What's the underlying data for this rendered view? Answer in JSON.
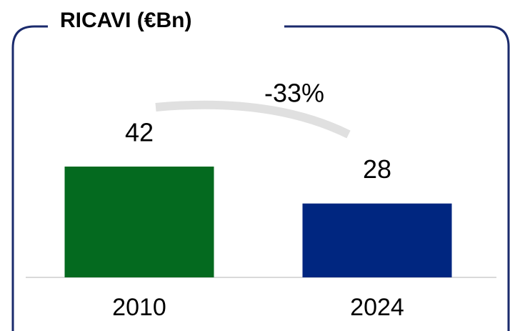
{
  "chart_data": {
    "type": "bar",
    "title": "RICAVI (€Bn)",
    "categories": [
      "2010",
      "2024"
    ],
    "values": [
      42,
      28
    ],
    "colors": [
      "#046a1f",
      "#002680"
    ],
    "annotation": "-33%"
  }
}
